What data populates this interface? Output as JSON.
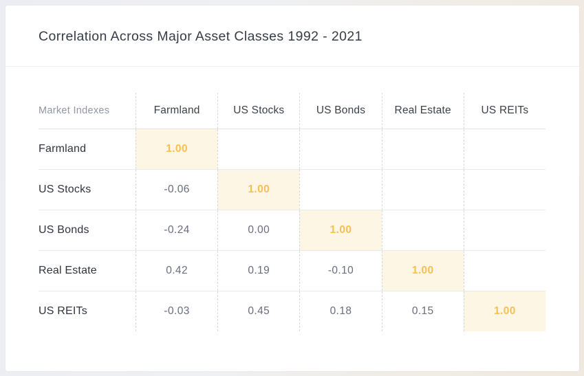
{
  "page": {
    "title": "Correlation Across Major Asset Classes 1992 - 2021"
  },
  "table": {
    "corner_label": "Market Indexes",
    "columns": [
      "Farmland",
      "US Stocks",
      "US Bonds",
      "Real Estate",
      "US REITs"
    ],
    "rows": [
      {
        "label": "Farmland",
        "values": [
          "1.00",
          "",
          "",
          "",
          ""
        ],
        "highlight_index": 0
      },
      {
        "label": "US Stocks",
        "values": [
          "-0.06",
          "1.00",
          "",
          "",
          ""
        ],
        "highlight_index": 1
      },
      {
        "label": "US Bonds",
        "values": [
          "-0.24",
          "0.00",
          "1.00",
          "",
          ""
        ],
        "highlight_index": 2
      },
      {
        "label": "Real Estate",
        "values": [
          "0.42",
          "0.19",
          "-0.10",
          "1.00",
          ""
        ],
        "highlight_index": 3
      },
      {
        "label": "US REITs",
        "values": [
          "-0.03",
          "0.45",
          "0.18",
          "0.15",
          "1.00"
        ],
        "highlight_index": 4
      }
    ]
  },
  "colors": {
    "highlight_bg": "#fdf6e4",
    "highlight_text": "#f6c053",
    "title_text": "#363c46",
    "header_text": "#3b404a",
    "corner_label_text": "#9195a4",
    "value_text": "#676d7c"
  },
  "chart_data": {
    "type": "table",
    "title": "Correlation Across Major Asset Classes 1992 - 2021",
    "row_labels": [
      "Farmland",
      "US Stocks",
      "US Bonds",
      "Real Estate",
      "US REITs"
    ],
    "col_labels": [
      "Farmland",
      "US Stocks",
      "US Bonds",
      "Real Estate",
      "US REITs"
    ],
    "matrix": [
      [
        1.0,
        null,
        null,
        null,
        null
      ],
      [
        -0.06,
        1.0,
        null,
        null,
        null
      ],
      [
        -0.24,
        0.0,
        1.0,
        null,
        null
      ],
      [
        0.42,
        0.19,
        -0.1,
        1.0,
        null
      ],
      [
        -0.03,
        0.45,
        0.18,
        0.15,
        1.0
      ]
    ],
    "notes": "Lower-triangular correlation matrix; diagonal cells (1.00) highlighted in gold on cream background"
  }
}
